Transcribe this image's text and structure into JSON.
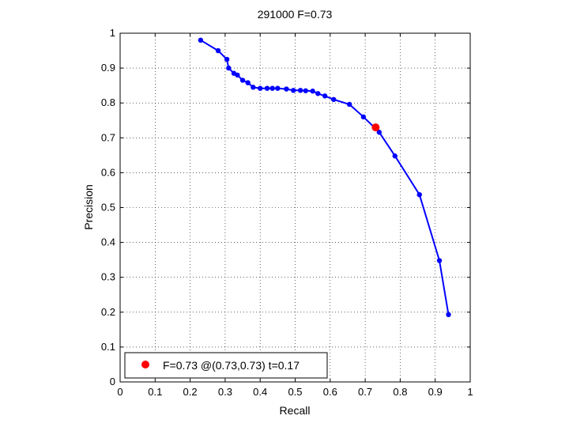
{
  "chart_data": {
    "type": "line",
    "title": "291000 F=0.73",
    "xlabel": "Recall",
    "ylabel": "Precision",
    "xlim": [
      0,
      1
    ],
    "ylim": [
      0,
      1
    ],
    "xticks": [
      "0",
      "0.1",
      "0.2",
      "0.3",
      "0.4",
      "0.5",
      "0.6",
      "0.7",
      "0.8",
      "0.9",
      "1"
    ],
    "yticks": [
      "0",
      "0.1",
      "0.2",
      "0.3",
      "0.4",
      "0.5",
      "0.6",
      "0.7",
      "0.8",
      "0.9",
      "1"
    ],
    "grid": true,
    "legend_position": "bottom-left",
    "series": [
      {
        "color": "#0000ff",
        "marker": "dot",
        "points": [
          [
            0.23,
            0.98
          ],
          [
            0.28,
            0.95
          ],
          [
            0.305,
            0.925
          ],
          [
            0.31,
            0.9
          ],
          [
            0.325,
            0.885
          ],
          [
            0.335,
            0.88
          ],
          [
            0.35,
            0.865
          ],
          [
            0.365,
            0.858
          ],
          [
            0.38,
            0.845
          ],
          [
            0.4,
            0.842
          ],
          [
            0.42,
            0.842
          ],
          [
            0.435,
            0.842
          ],
          [
            0.45,
            0.842
          ],
          [
            0.475,
            0.84
          ],
          [
            0.495,
            0.836
          ],
          [
            0.515,
            0.836
          ],
          [
            0.53,
            0.835
          ],
          [
            0.55,
            0.834
          ],
          [
            0.565,
            0.827
          ],
          [
            0.585,
            0.82
          ],
          [
            0.61,
            0.81
          ],
          [
            0.655,
            0.796
          ],
          [
            0.695,
            0.76
          ],
          [
            0.74,
            0.716
          ],
          [
            0.785,
            0.648
          ],
          [
            0.855,
            0.537
          ],
          [
            0.912,
            0.348
          ],
          [
            0.938,
            0.193
          ]
        ]
      }
    ],
    "best_point": {
      "recall": 0.73,
      "precision": 0.73,
      "color": "#ff0000"
    },
    "legend": {
      "text": "F=0.73 @(0.73,0.73) t=0.17"
    }
  }
}
